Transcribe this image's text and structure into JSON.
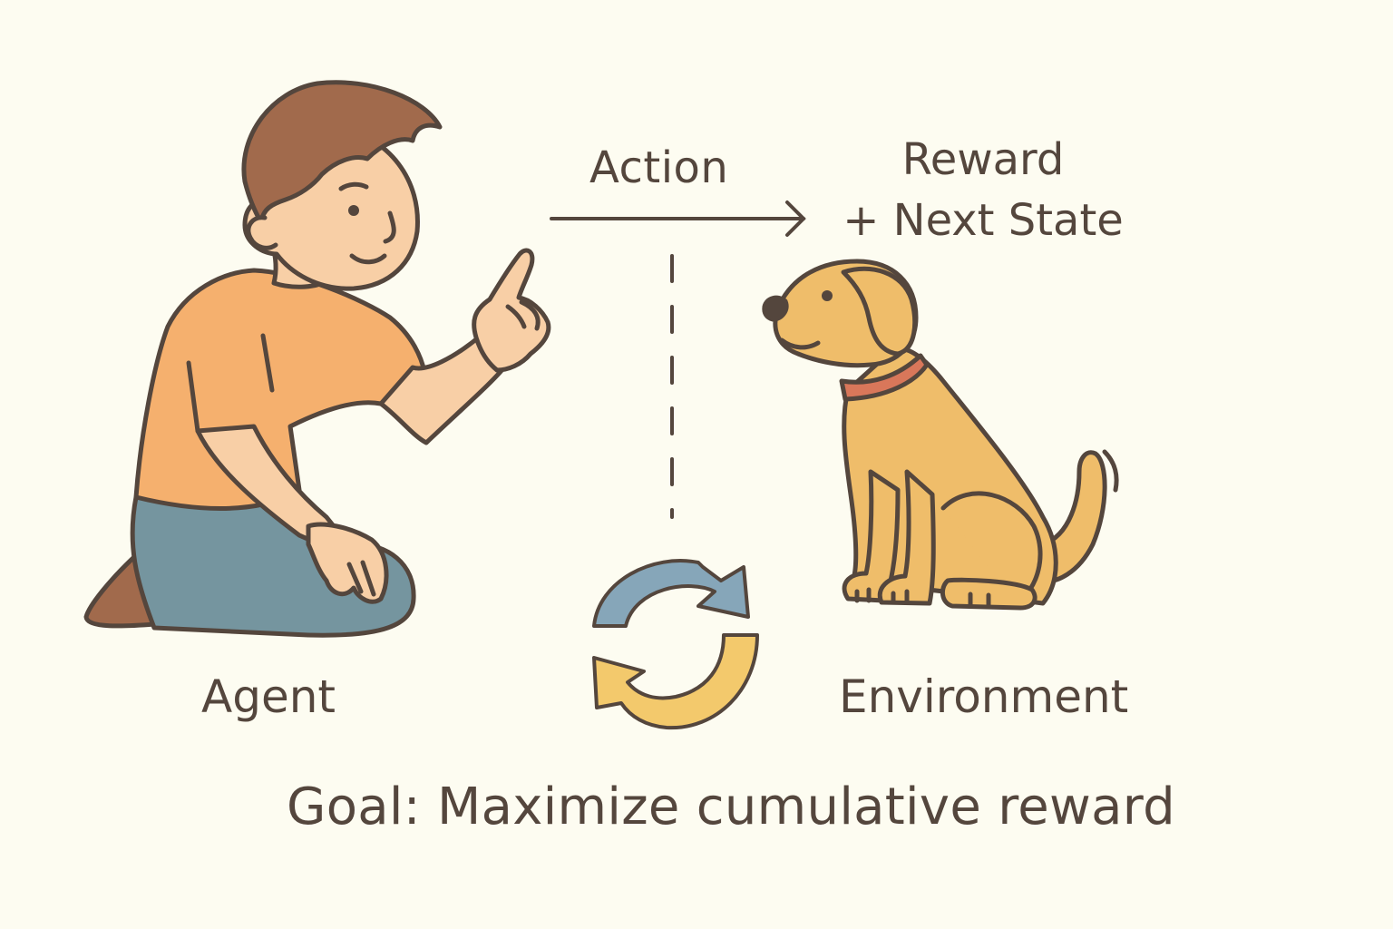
{
  "labels": {
    "action": "Action",
    "reward_line1": "Reward",
    "reward_line2": "+ Next State",
    "agent": "Agent",
    "environment": "Environment",
    "goal": "Goal: Maximize cumulative reward"
  },
  "colors": {
    "background": "#fdfcf1",
    "outline": "#54463d",
    "shirt": "#f5b06e",
    "skin": "#f8cfa6",
    "hair": "#a16a4c",
    "pants": "#75959f",
    "shoes": "#a16a4c",
    "dog_fur": "#efbd6a",
    "dog_collar": "#d9775a",
    "cycle_blue": "#86a6b9",
    "cycle_yellow": "#f3c96c"
  },
  "icons": {
    "agent": "person-kneeling-pointing",
    "environment": "dog-sitting",
    "cycle": "refresh-cycle-icon",
    "action_arrow": "arrow-right-icon"
  }
}
